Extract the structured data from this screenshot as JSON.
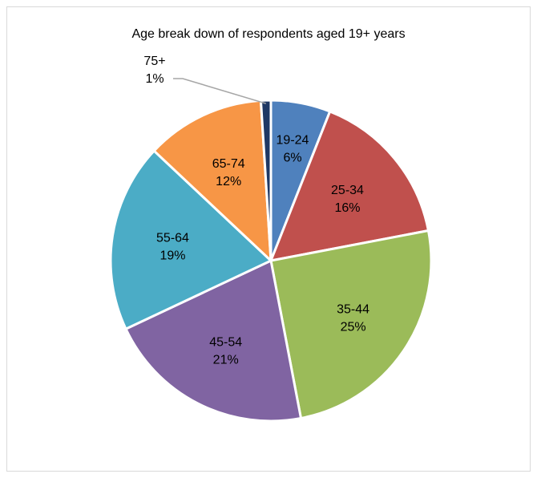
{
  "chart_data": {
    "type": "pie",
    "title": "Age break down of respondents aged 19+ years",
    "slices": [
      {
        "label": "19-24",
        "value": 6,
        "value_label": "6%",
        "color": "#4f81bd"
      },
      {
        "label": "25-34",
        "value": 16,
        "value_label": "16%",
        "color": "#c0504d"
      },
      {
        "label": "35-44",
        "value": 25,
        "value_label": "25%",
        "color": "#9bbb59"
      },
      {
        "label": "45-54",
        "value": 21,
        "value_label": "21%",
        "color": "#8064a2"
      },
      {
        "label": "55-64",
        "value": 19,
        "value_label": "19%",
        "color": "#4bacc6"
      },
      {
        "label": "65-74",
        "value": 12,
        "value_label": "12%",
        "color": "#f79646"
      },
      {
        "label": "75+",
        "value": 1,
        "value_label": "1%",
        "color": "#1f3864"
      }
    ],
    "legend": "none"
  }
}
